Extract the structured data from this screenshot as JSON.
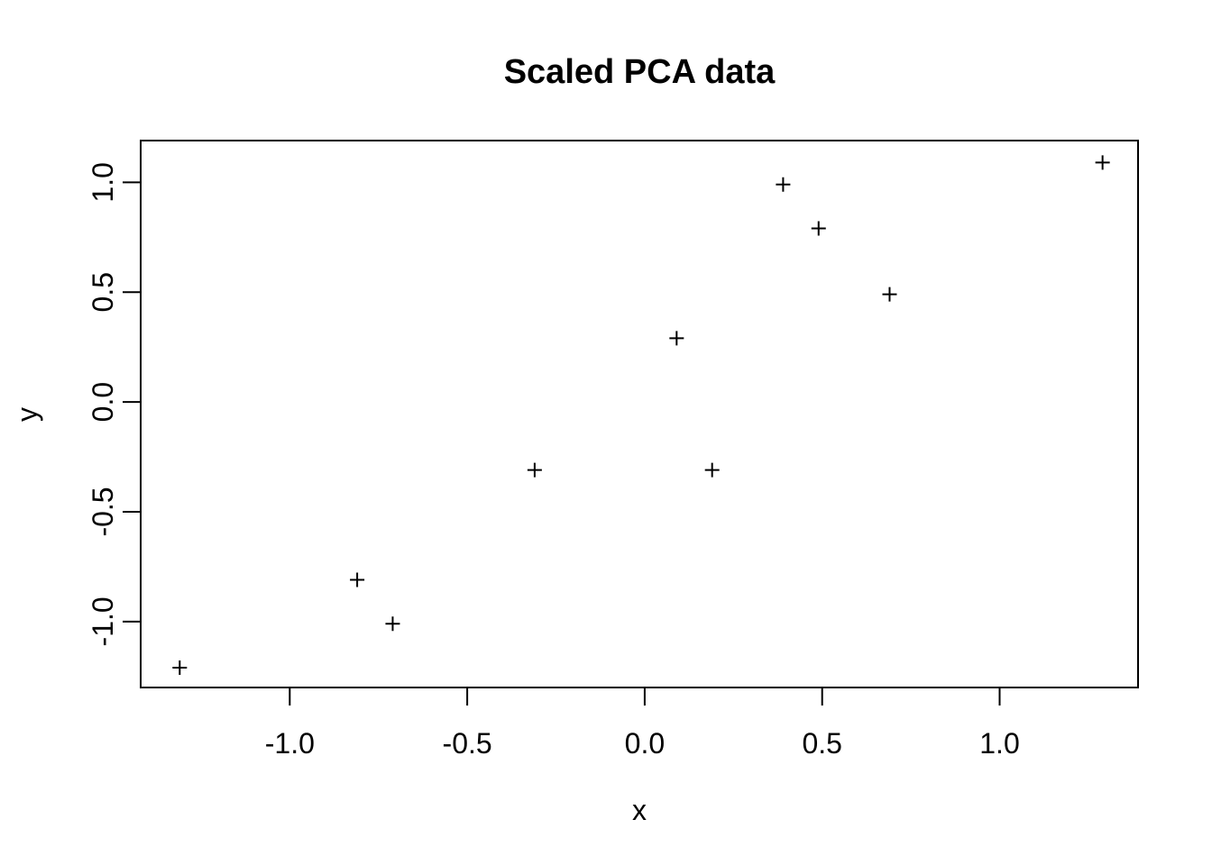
{
  "chart_data": {
    "type": "scatter",
    "title": "Scaled PCA data",
    "xlabel": "x",
    "ylabel": "y",
    "marker": "plus",
    "grid": false,
    "legend": null,
    "xlim": [
      -1.42,
      1.39
    ],
    "ylim": [
      -1.3,
      1.19
    ],
    "x_ticks": [
      -1.0,
      -0.5,
      0.0,
      0.5,
      1.0
    ],
    "x_tick_labels": [
      "-1.0",
      "-0.5",
      "0.0",
      "0.5",
      "1.0"
    ],
    "y_ticks": [
      -1.0,
      -0.5,
      0.0,
      0.5,
      1.0
    ],
    "y_tick_labels": [
      "-1.0",
      "-0.5",
      "0.0",
      "0.5",
      "1.0"
    ],
    "points": [
      {
        "x": 0.69,
        "y": 0.49
      },
      {
        "x": -1.31,
        "y": -1.21
      },
      {
        "x": 0.39,
        "y": 0.99
      },
      {
        "x": 0.09,
        "y": 0.29
      },
      {
        "x": 1.29,
        "y": 1.09
      },
      {
        "x": 0.49,
        "y": 0.79
      },
      {
        "x": 0.19,
        "y": -0.31
      },
      {
        "x": -0.81,
        "y": -0.81
      },
      {
        "x": -0.31,
        "y": -0.31
      },
      {
        "x": -0.71,
        "y": -1.01
      }
    ],
    "colors": {
      "foreground": "#000000",
      "background": "#ffffff"
    }
  }
}
